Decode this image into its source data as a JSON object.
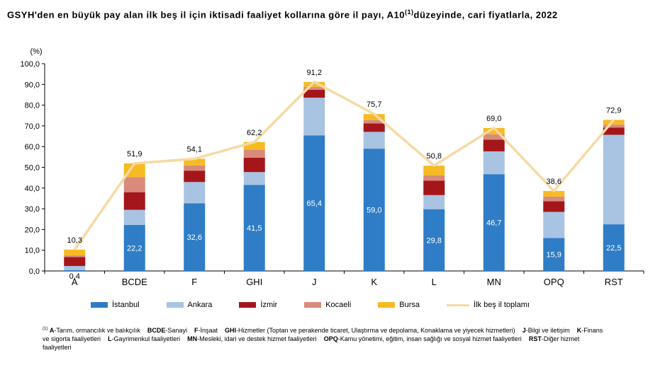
{
  "title": {
    "text_part1": "GSYH'den en büyük pay alan ilk beş il için iktisadi faaliyet kollarına göre il payı, A10",
    "superscript": "(1)",
    "text_part2": "düzeyinde, cari fiyatlarla, 2022"
  },
  "chart_data": {
    "type": "bar",
    "stacked": true,
    "categories": [
      "A",
      "BCDE",
      "F",
      "GHI",
      "J",
      "K",
      "L",
      "MN",
      "OPQ",
      "RST"
    ],
    "series": [
      {
        "name": "İstanbul",
        "color": "#2e7dc6",
        "values": [
          0.4,
          22.2,
          32.6,
          41.5,
          65.4,
          59.0,
          29.8,
          46.7,
          15.9,
          22.5
        ]
      },
      {
        "name": "Ankara",
        "color": "#a9c3e3",
        "values": [
          2.0,
          7.3,
          10.3,
          6.2,
          18.2,
          8.1,
          6.8,
          11.0,
          12.6,
          43.2
        ]
      },
      {
        "name": "İzmir",
        "color": "#a4161a",
        "values": [
          4.3,
          8.5,
          5.5,
          6.9,
          3.8,
          4.1,
          7.0,
          5.6,
          5.1,
          3.5
        ]
      },
      {
        "name": "Kocaeli",
        "color": "#d98b7b",
        "values": [
          0.8,
          7.3,
          2.5,
          3.9,
          1.4,
          1.6,
          2.6,
          2.6,
          2.3,
          1.4
        ]
      },
      {
        "name": "Bursa",
        "color": "#f6bb23",
        "values": [
          2.8,
          6.6,
          3.2,
          3.7,
          2.4,
          2.9,
          4.6,
          3.1,
          2.7,
          2.3
        ]
      }
    ],
    "total_series": {
      "name": "İlk beş il toplamı",
      "color": "#f6d9a4",
      "values": [
        10.3,
        51.9,
        54.1,
        62.2,
        91.2,
        75.7,
        50.8,
        69.0,
        38.6,
        72.9
      ]
    },
    "bar_labels": [
      "0,4",
      "22,2",
      "32,6",
      "41,5",
      "65,4",
      "59,0",
      "29,8",
      "46,7",
      "15,9",
      "22,5"
    ],
    "total_labels": [
      "10,3",
      "51,9",
      "54,1",
      "62,2",
      "91,2",
      "75,7",
      "50,8",
      "69,0",
      "38,6",
      "72,9"
    ],
    "y_unit_label": "(%)",
    "ylim": [
      0,
      100
    ],
    "ytick_labels": [
      "0,0",
      "10,0",
      "20,0",
      "30,0",
      "40,0",
      "50,0",
      "60,0",
      "70,0",
      "80,0",
      "90,0",
      "100,0"
    ],
    "legend_position": "bottom"
  },
  "footnote": {
    "marker": "(1)",
    "entries": [
      {
        "abbr": "A",
        "text": "-Tarım, ormancılık ve balıkçılık"
      },
      {
        "abbr": "BCDE",
        "text": "-Sanayi"
      },
      {
        "abbr": "F",
        "text": "-İnşaat"
      },
      {
        "abbr": "GHI",
        "text": "-Hizmetler (Toptan ve perakende ticaret, Ulaştırma ve depolama, Konaklama ve yiyecek hizmetleri)"
      },
      {
        "abbr": "J",
        "text": "-Bilgi ve iletişim"
      },
      {
        "abbr": "K",
        "text": "-Finans ve sigorta faaliyetleri"
      },
      {
        "abbr": "L",
        "text": "-Gayrimenkul faaliyetleri"
      },
      {
        "abbr": "MN",
        "text": "-Mesleki, idari ve destek hizmet faaliyetleri"
      },
      {
        "abbr": "OPQ",
        "text": "-Kamu yönetimi, eğitim, insan sağlığı ve sosyal hizmet faaliyetleri"
      },
      {
        "abbr": "RST",
        "text": "-Diğer hizmet faaliyetleri"
      }
    ]
  }
}
